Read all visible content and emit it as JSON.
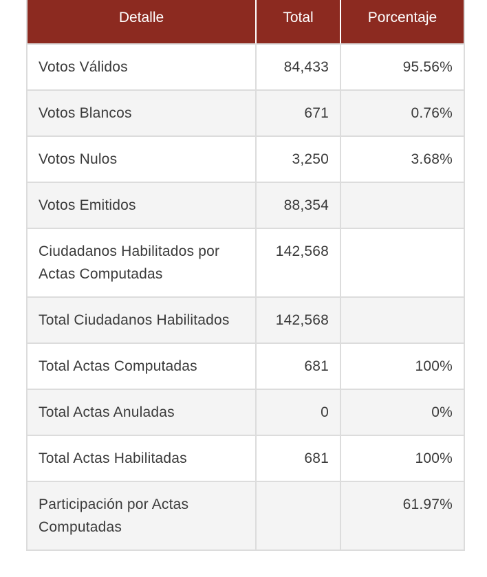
{
  "table": {
    "headers": [
      "Detalle",
      "Total",
      "Porcentaje"
    ],
    "rows": [
      {
        "label": "Votos Válidos",
        "total": "84,433",
        "percent": "95.56%"
      },
      {
        "label": "Votos Blancos",
        "total": "671",
        "percent": "0.76%"
      },
      {
        "label": "Votos Nulos",
        "total": "3,250",
        "percent": "3.68%"
      },
      {
        "label": "Votos Emitidos",
        "total": "88,354",
        "percent": ""
      },
      {
        "label": "Ciudadanos Habilitados por Actas Computadas",
        "total": "142,568",
        "percent": ""
      },
      {
        "label": "Total Ciudadanos Habilitados",
        "total": "142,568",
        "percent": ""
      },
      {
        "label": "Total Actas Computadas",
        "total": "681",
        "percent": "100%"
      },
      {
        "label": "Total Actas Anuladas",
        "total": "0",
        "percent": "0%"
      },
      {
        "label": "Total Actas Habilitadas",
        "total": "681",
        "percent": "100%"
      },
      {
        "label": "Participación por Actas Computadas",
        "total": "",
        "percent": "61.97%"
      }
    ]
  },
  "colors": {
    "header_bg": "#8c2a20",
    "header_text": "#ffffff",
    "row_alt_bg": "#f4f4f4",
    "border": "#dcdcdc"
  }
}
